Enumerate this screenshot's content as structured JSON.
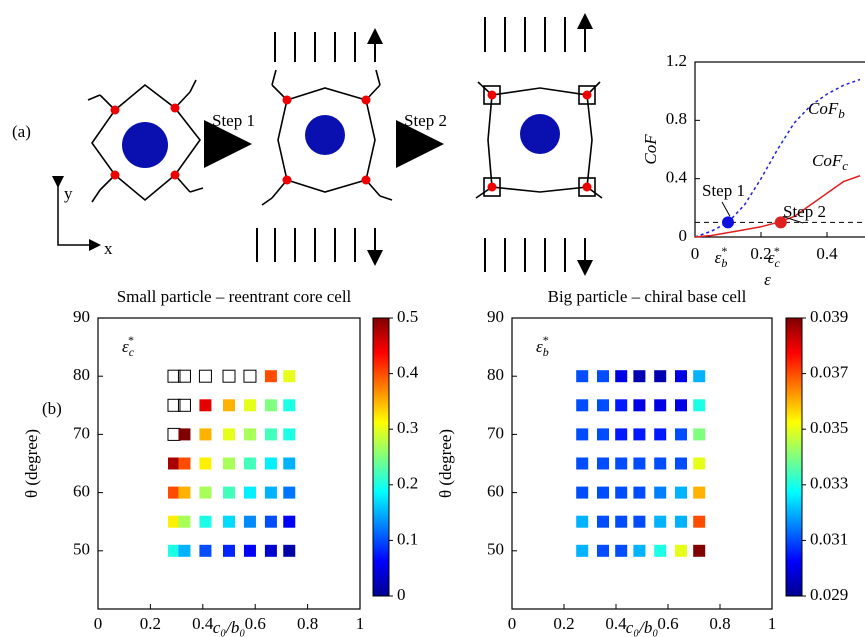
{
  "labels": {
    "panel_a": "(a)",
    "panel_b": "(b)",
    "step1": "Step 1",
    "step2": "Step 2",
    "axis_x": "x",
    "axis_y": "y"
  },
  "chart_data": [
    {
      "type": "line",
      "xlabel": "ε",
      "ylabel": "CoF",
      "xlim": [
        0,
        0.5
      ],
      "ylim": [
        0,
        1.2
      ],
      "xticks": [
        0,
        0.2,
        0.4
      ],
      "yticks": [
        0,
        0.4,
        0.8,
        1.2
      ],
      "x": [
        0,
        0.05,
        0.1,
        0.15,
        0.2,
        0.25,
        0.3,
        0.35,
        0.4,
        0.45,
        0.5
      ],
      "series": [
        {
          "name": "CoF",
          "name_sub": "b",
          "color": "#2020e0",
          "dash": true,
          "values": [
            0,
            0.04,
            0.1,
            0.22,
            0.4,
            0.6,
            0.78,
            0.9,
            0.98,
            1.04,
            1.08
          ]
        },
        {
          "name": "CoF",
          "name_sub": "c",
          "color": "#e02020",
          "dash": false,
          "values": [
            0,
            0.01,
            0.03,
            0.05,
            0.07,
            0.1,
            0.14,
            0.22,
            0.3,
            0.38,
            0.42
          ]
        }
      ],
      "hline": 0.1,
      "points": [
        {
          "label": "Step 1",
          "x": 0.1,
          "y": 0.1,
          "color": "#1010e0",
          "tick": {
            "base": "ε",
            "sub": "b",
            "sup": "*"
          }
        },
        {
          "label": "Step 2",
          "x": 0.26,
          "y": 0.1,
          "color": "#e02020",
          "tick": {
            "base": "ε",
            "sub": "c",
            "sup": "*"
          }
        }
      ]
    },
    {
      "type": "heatmap",
      "title": "Small particle – reentrant core cell",
      "corner": {
        "base": "ε",
        "sub": "c",
        "sup": "*"
      },
      "xlabel": "c₀/b₀",
      "ylabel": "θ (degree)",
      "xlim": [
        0,
        1
      ],
      "ylim": [
        40,
        90
      ],
      "xticks": [
        0,
        0.2,
        0.4,
        0.6,
        0.8,
        1
      ],
      "yticks": [
        50,
        60,
        70,
        80,
        90
      ],
      "clim": [
        0,
        0.5
      ],
      "cticks": [
        0,
        0.1,
        0.2,
        0.3,
        0.4,
        0.5
      ],
      "x": [
        0.29,
        0.33,
        0.41,
        0.5,
        0.58,
        0.66,
        0.73
      ],
      "y": [
        50,
        55,
        60,
        65,
        70,
        75,
        80
      ],
      "z": [
        [
          0.2,
          0.15,
          0.1,
          0.08,
          0.06,
          0.04,
          0.02
        ],
        [
          0.32,
          0.27,
          0.2,
          0.17,
          0.13,
          0.1,
          0.06
        ],
        [
          0.4,
          0.35,
          0.27,
          0.22,
          0.18,
          0.15,
          0.12
        ],
        [
          0.48,
          0.4,
          0.32,
          0.27,
          0.22,
          0.18,
          0.15
        ],
        [
          null,
          0.5,
          0.35,
          0.3,
          0.27,
          0.22,
          0.2
        ],
        [
          null,
          null,
          0.45,
          0.35,
          0.3,
          0.25,
          0.2
        ],
        [
          null,
          null,
          null,
          null,
          null,
          0.4,
          0.3
        ]
      ]
    },
    {
      "type": "heatmap",
      "title": "Big particle – chiral base cell",
      "corner": {
        "base": "ε",
        "sub": "b",
        "sup": "*"
      },
      "xlabel": "c₀/b₀",
      "ylabel": "θ (degree)",
      "xlim": [
        0,
        1
      ],
      "ylim": [
        40,
        90
      ],
      "xticks": [
        0,
        0.2,
        0.4,
        0.6,
        0.8,
        1
      ],
      "yticks": [
        50,
        60,
        70,
        80,
        90
      ],
      "clim": [
        0.029,
        0.039
      ],
      "cticks": [
        0.029,
        0.031,
        0.033,
        0.035,
        0.037,
        0.039
      ],
      "x": [
        0.27,
        0.35,
        0.42,
        0.49,
        0.57,
        0.65,
        0.72
      ],
      "y": [
        50,
        55,
        60,
        65,
        70,
        75,
        80
      ],
      "z": [
        [
          0.032,
          0.031,
          0.031,
          0.032,
          0.033,
          0.035,
          0.039
        ],
        [
          0.032,
          0.031,
          0.031,
          0.031,
          0.032,
          0.032,
          0.037
        ],
        [
          0.031,
          0.031,
          0.031,
          0.031,
          0.0315,
          0.032,
          0.036
        ],
        [
          0.031,
          0.031,
          0.031,
          0.031,
          0.031,
          0.031,
          0.035
        ],
        [
          0.031,
          0.031,
          0.0305,
          0.0305,
          0.0305,
          0.031,
          0.034
        ],
        [
          0.031,
          0.031,
          0.0305,
          0.03,
          0.03,
          0.03,
          0.033
        ],
        [
          0.031,
          0.031,
          0.03,
          0.0295,
          0.0295,
          0.03,
          0.032
        ]
      ]
    }
  ]
}
